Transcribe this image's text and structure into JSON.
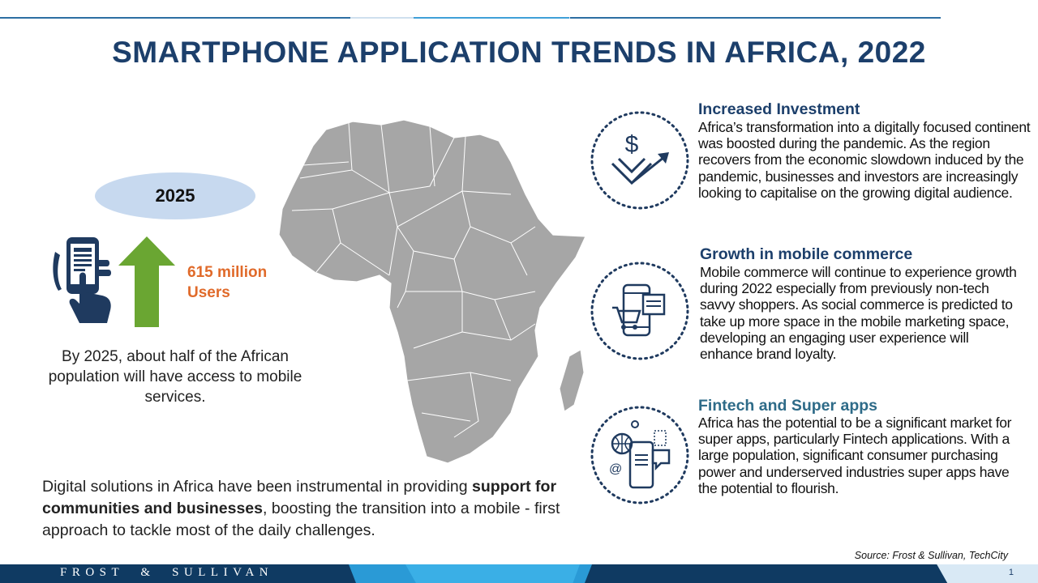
{
  "title": "SMARTPHONE APPLICATION TRENDS IN AFRICA, 2022",
  "left": {
    "year": "2025",
    "stat_line1": "615 million",
    "stat_line2": "Users",
    "caption": "By 2025, about half of the African population will have access to mobile services."
  },
  "bottom": {
    "part1": "Digital solutions in Africa have been instrumental in providing ",
    "bold": "support for communities and businesses",
    "part2": ", boosting the transition into a mobile - first approach to tackle most of the daily challenges."
  },
  "features": [
    {
      "title": "Increased Investment",
      "body": "Africa’s transformation into a digitally focused continent was boosted during the pandemic. As the region recovers from the economic slowdown induced by the pandemic, businesses and investors are increasingly looking to capitalise on the growing digital audience.",
      "icon": "investment-icon"
    },
    {
      "title": "Growth in mobile commerce",
      "body": "Mobile commerce will continue to experience growth during 2022 especially from previously non-tech savvy shoppers. As social commerce is predicted to take up more space in the mobile marketing space, developing an engaging user experience will enhance brand loyalty.",
      "icon": "mobile-commerce-icon"
    },
    {
      "title": "Fintech and Super apps",
      "body": "Africa has the potential to be a significant market for super apps, particularly Fintech applications. With a large population, significant consumer purchasing power and underserved industries super apps have the potential to flourish.",
      "icon": "fintech-icon"
    }
  ],
  "source": "Source: Frost & Sullivan, TechCity",
  "footer": {
    "brand": "FROST  &  SULLIVAN",
    "page": "1"
  },
  "colors": {
    "title": "#1c3f6b",
    "accent_orange": "#e06a2a",
    "arrow_green": "#6aa632",
    "map_gray": "#a6a6a6",
    "footer_navy": "#0f3a62"
  }
}
